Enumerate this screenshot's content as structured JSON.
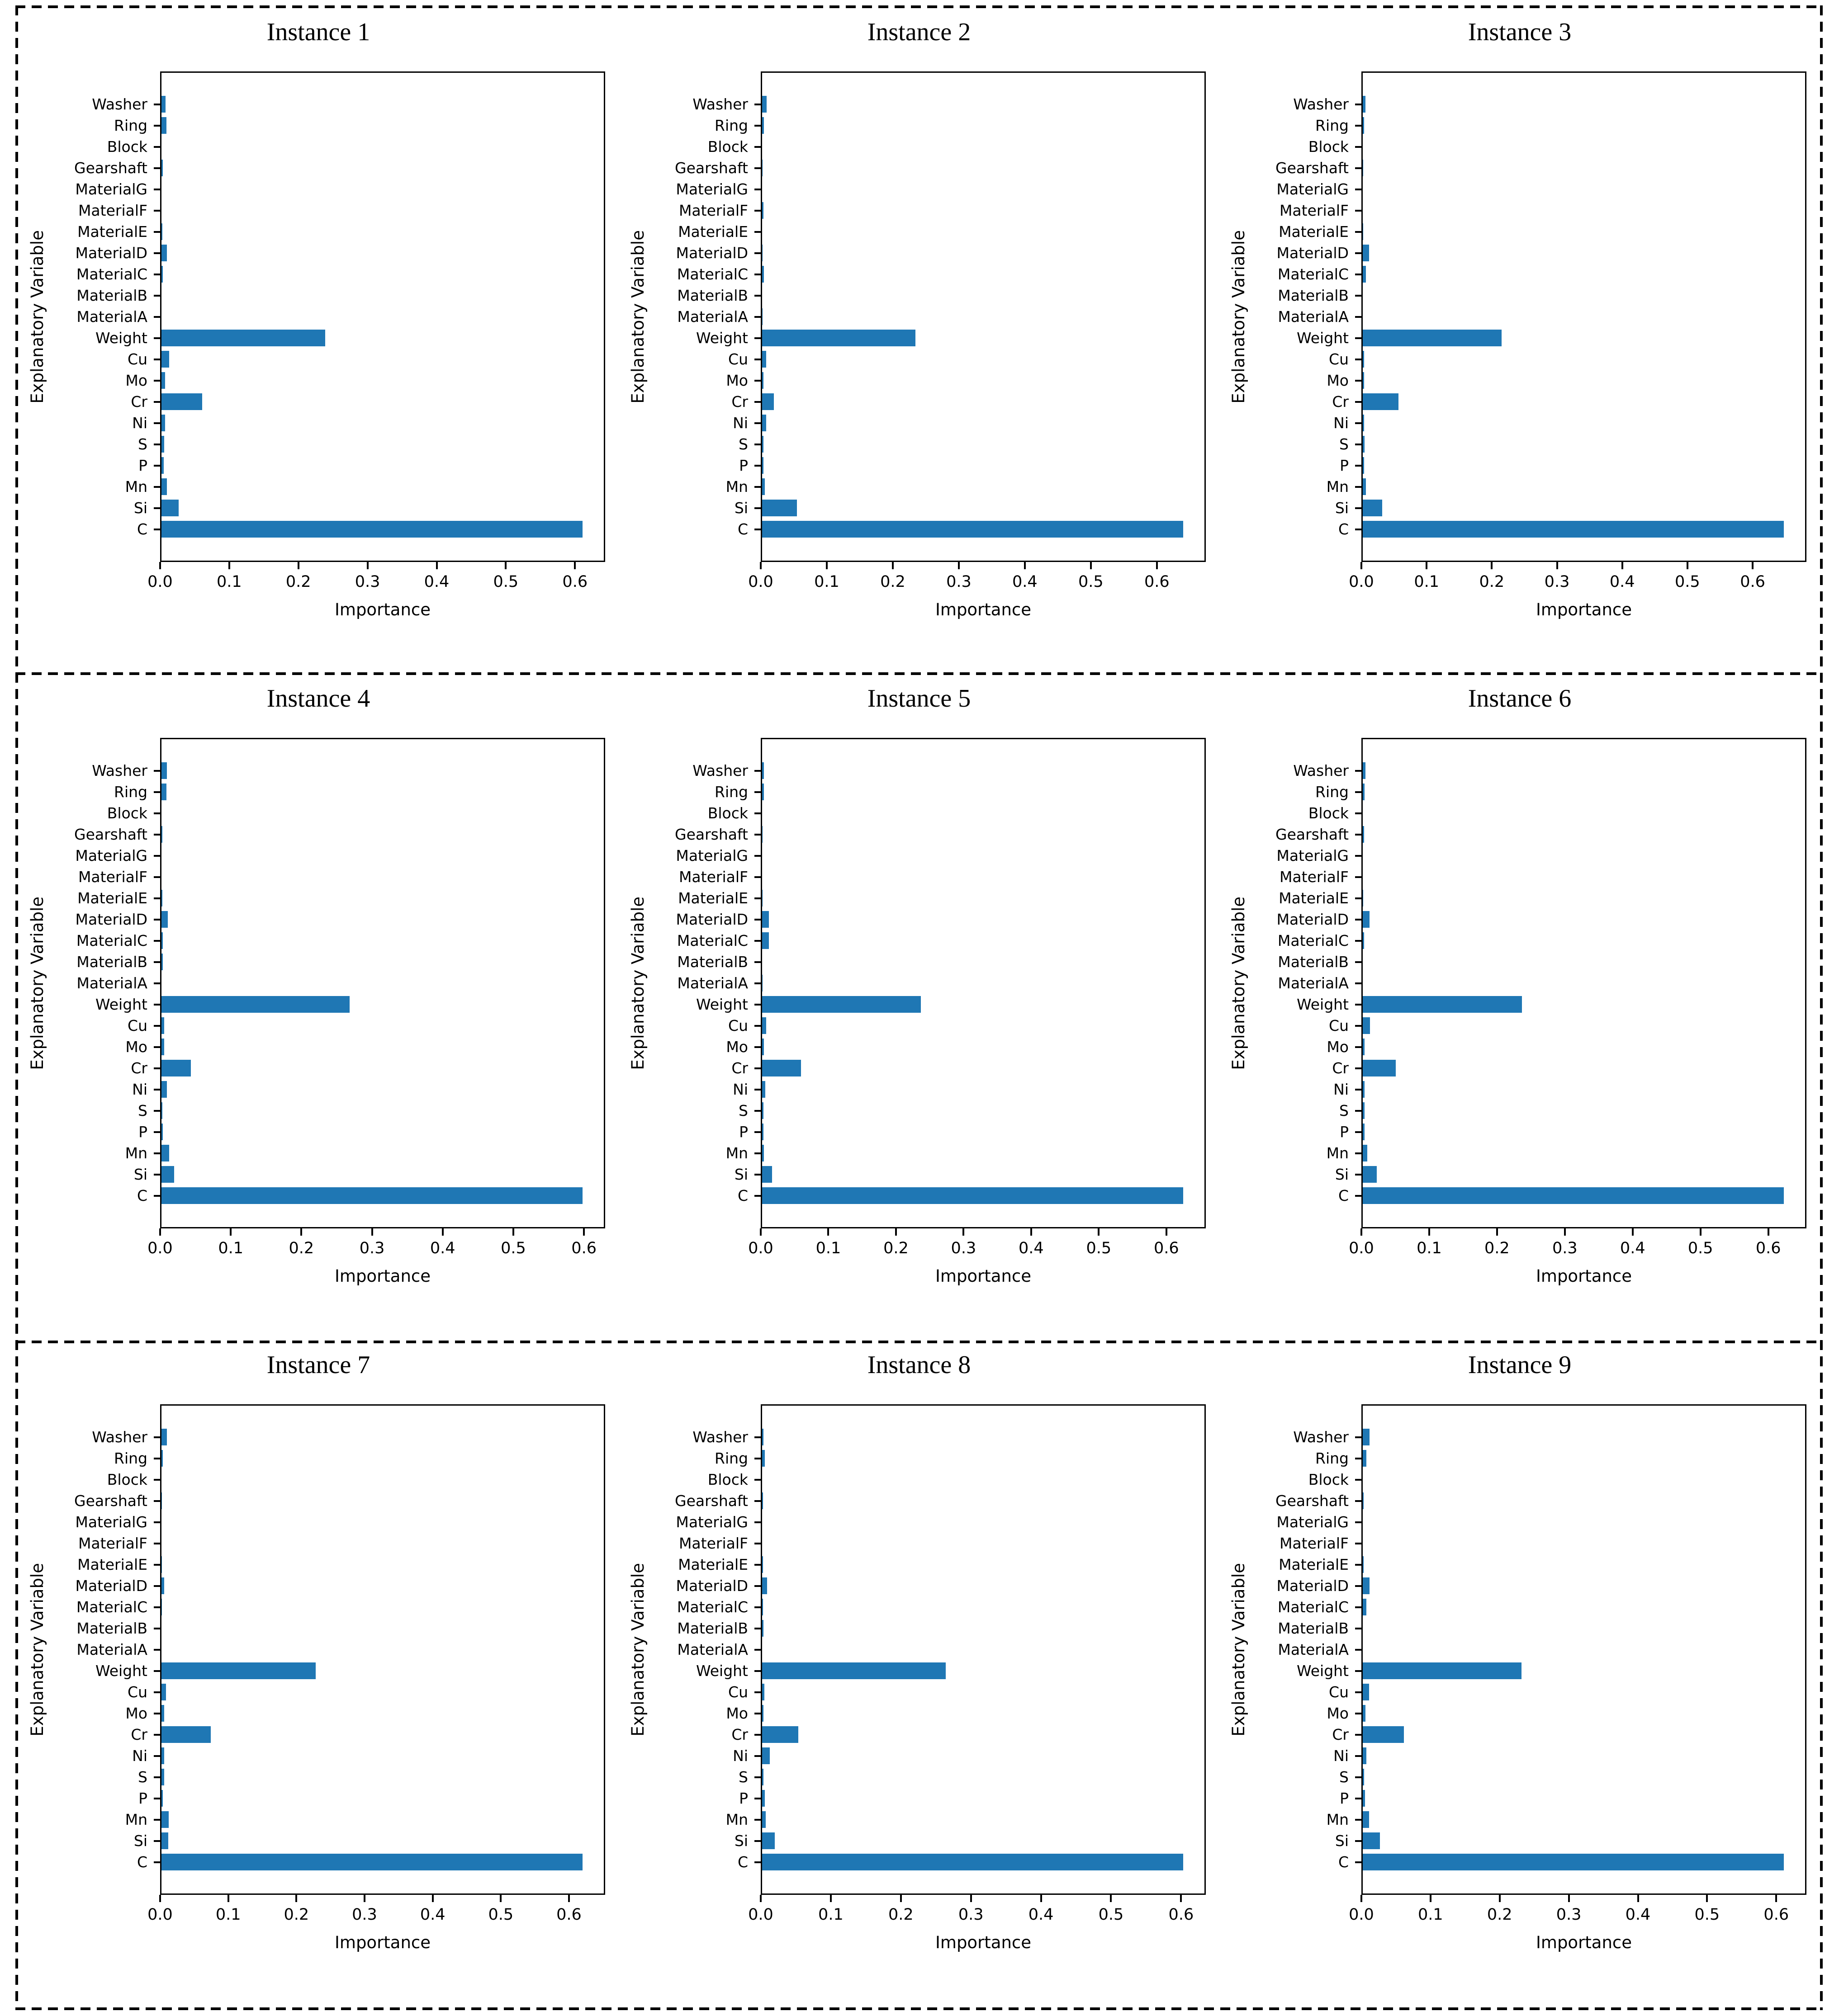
{
  "figure": {
    "layout": {
      "rows": 3,
      "cols": 3
    },
    "bar_color": "#1f77b4",
    "border_style": "black dashed frame with horizontal row dividers",
    "shared_ylabel": "Explanatory Variable",
    "shared_xlabel": "Importance",
    "subplot_titles": [
      "Instance 1",
      "Instance 2",
      "Instance 3",
      "Instance 4",
      "Instance 5",
      "Instance 6",
      "Instance 7",
      "Instance 8",
      "Instance 9"
    ]
  },
  "chart_data": [
    {
      "type": "bar",
      "orientation": "horizontal",
      "title": "Instance 1",
      "xlabel": "Importance",
      "ylabel": "Explanatory Variable",
      "bar_color": "#1f77b4",
      "grid": false,
      "legend": false,
      "xticks": [
        0.0,
        0.1,
        0.2,
        0.3,
        0.4,
        0.5,
        0.6
      ],
      "categories_top_to_bottom": [
        "Washer",
        "Ring",
        "Block",
        "Gearshaft",
        "MaterialG",
        "MaterialF",
        "MaterialE",
        "MaterialD",
        "MaterialC",
        "MaterialB",
        "MaterialA",
        "Weight",
        "Cu",
        "Mo",
        "Cr",
        "Ni",
        "S",
        "P",
        "Mn",
        "Si",
        "C"
      ],
      "values": [
        0.006,
        0.007,
        0.0,
        0.002,
        0.0,
        0.0,
        0.001,
        0.008,
        0.002,
        0.0,
        0.0,
        0.238,
        0.011,
        0.005,
        0.059,
        0.005,
        0.004,
        0.003,
        0.008,
        0.025,
        0.613
      ]
    },
    {
      "type": "bar",
      "orientation": "horizontal",
      "title": "Instance 2",
      "xlabel": "Importance",
      "ylabel": "Explanatory Variable",
      "bar_color": "#1f77b4",
      "grid": false,
      "legend": false,
      "xticks": [
        0.0,
        0.1,
        0.2,
        0.3,
        0.4,
        0.5,
        0.6
      ],
      "categories_top_to_bottom": [
        "Washer",
        "Ring",
        "Block",
        "Gearshaft",
        "MaterialG",
        "MaterialF",
        "MaterialE",
        "MaterialD",
        "MaterialC",
        "MaterialB",
        "MaterialA",
        "Weight",
        "Cu",
        "Mo",
        "Cr",
        "Ni",
        "S",
        "P",
        "Mn",
        "Si",
        "C"
      ],
      "values": [
        0.007,
        0.003,
        0.0,
        0.001,
        0.0,
        0.002,
        0.0,
        0.001,
        0.003,
        0.0,
        0.001,
        0.234,
        0.006,
        0.002,
        0.018,
        0.006,
        0.002,
        0.002,
        0.004,
        0.053,
        0.642
      ]
    },
    {
      "type": "bar",
      "orientation": "horizontal",
      "title": "Instance 3",
      "xlabel": "Importance",
      "ylabel": "Explanatory Variable",
      "bar_color": "#1f77b4",
      "grid": false,
      "legend": false,
      "xticks": [
        0.0,
        0.1,
        0.2,
        0.3,
        0.4,
        0.5,
        0.6
      ],
      "categories_top_to_bottom": [
        "Washer",
        "Ring",
        "Block",
        "Gearshaft",
        "MaterialG",
        "MaterialF",
        "MaterialE",
        "MaterialD",
        "MaterialC",
        "MaterialB",
        "MaterialA",
        "Weight",
        "Cu",
        "Mo",
        "Cr",
        "Ni",
        "S",
        "P",
        "Mn",
        "Si",
        "C"
      ],
      "values": [
        0.004,
        0.002,
        0.0,
        0.001,
        0.0,
        0.0,
        0.001,
        0.01,
        0.005,
        0.0,
        0.0,
        0.214,
        0.002,
        0.002,
        0.055,
        0.002,
        0.003,
        0.002,
        0.005,
        0.03,
        0.65
      ]
    },
    {
      "type": "bar",
      "orientation": "horizontal",
      "title": "Instance 4",
      "xlabel": "Importance",
      "ylabel": "Explanatory Variable",
      "bar_color": "#1f77b4",
      "grid": false,
      "legend": false,
      "xticks": [
        0.0,
        0.1,
        0.2,
        0.3,
        0.4,
        0.5,
        0.6
      ],
      "categories_top_to_bottom": [
        "Washer",
        "Ring",
        "Block",
        "Gearshaft",
        "MaterialG",
        "MaterialF",
        "MaterialE",
        "MaterialD",
        "MaterialC",
        "MaterialB",
        "MaterialA",
        "Weight",
        "Cu",
        "Mo",
        "Cr",
        "Ni",
        "S",
        "P",
        "Mn",
        "Si",
        "C"
      ],
      "values": [
        0.008,
        0.007,
        0.0,
        0.001,
        0.0,
        0.0,
        0.001,
        0.009,
        0.002,
        0.002,
        0.0,
        0.268,
        0.004,
        0.004,
        0.042,
        0.008,
        0.001,
        0.002,
        0.011,
        0.018,
        0.6
      ]
    },
    {
      "type": "bar",
      "orientation": "horizontal",
      "title": "Instance 5",
      "xlabel": "Importance",
      "ylabel": "Explanatory Variable",
      "bar_color": "#1f77b4",
      "grid": false,
      "legend": false,
      "xticks": [
        0.0,
        0.1,
        0.2,
        0.3,
        0.4,
        0.5,
        0.6
      ],
      "categories_top_to_bottom": [
        "Washer",
        "Ring",
        "Block",
        "Gearshaft",
        "MaterialG",
        "MaterialF",
        "MaterialE",
        "MaterialD",
        "MaterialC",
        "MaterialB",
        "MaterialA",
        "Weight",
        "Cu",
        "Mo",
        "Cr",
        "Ni",
        "S",
        "P",
        "Mn",
        "Si",
        "C"
      ],
      "values": [
        0.003,
        0.003,
        0.0,
        0.001,
        0.0,
        0.0,
        0.001,
        0.01,
        0.01,
        0.0,
        0.001,
        0.236,
        0.006,
        0.003,
        0.058,
        0.005,
        0.002,
        0.002,
        0.003,
        0.015,
        0.627
      ]
    },
    {
      "type": "bar",
      "orientation": "horizontal",
      "title": "Instance 6",
      "xlabel": "Importance",
      "ylabel": "Explanatory Variable",
      "bar_color": "#1f77b4",
      "grid": false,
      "legend": false,
      "xticks": [
        0.0,
        0.1,
        0.2,
        0.3,
        0.4,
        0.5,
        0.6
      ],
      "categories_top_to_bottom": [
        "Washer",
        "Ring",
        "Block",
        "Gearshaft",
        "MaterialG",
        "MaterialF",
        "MaterialE",
        "MaterialD",
        "MaterialC",
        "MaterialB",
        "MaterialA",
        "Weight",
        "Cu",
        "Mo",
        "Cr",
        "Ni",
        "S",
        "P",
        "Mn",
        "Si",
        "C"
      ],
      "values": [
        0.004,
        0.003,
        0.0,
        0.002,
        0.0,
        0.0,
        0.001,
        0.01,
        0.002,
        0.0,
        0.0,
        0.236,
        0.011,
        0.003,
        0.049,
        0.003,
        0.003,
        0.003,
        0.007,
        0.021,
        0.625
      ]
    },
    {
      "type": "bar",
      "orientation": "horizontal",
      "title": "Instance 7",
      "xlabel": "Importance",
      "ylabel": "Explanatory Variable",
      "bar_color": "#1f77b4",
      "grid": false,
      "legend": false,
      "xticks": [
        0.0,
        0.1,
        0.2,
        0.3,
        0.4,
        0.5,
        0.6
      ],
      "categories_top_to_bottom": [
        "Washer",
        "Ring",
        "Block",
        "Gearshaft",
        "MaterialG",
        "MaterialF",
        "MaterialE",
        "MaterialD",
        "MaterialC",
        "MaterialB",
        "MaterialA",
        "Weight",
        "Cu",
        "Mo",
        "Cr",
        "Ni",
        "S",
        "P",
        "Mn",
        "Si",
        "C"
      ],
      "values": [
        0.008,
        0.002,
        0.0,
        0.001,
        0.0,
        0.0,
        0.001,
        0.004,
        0.001,
        0.0,
        0.0,
        0.228,
        0.007,
        0.004,
        0.073,
        0.004,
        0.004,
        0.002,
        0.011,
        0.01,
        0.622
      ]
    },
    {
      "type": "bar",
      "orientation": "horizontal",
      "title": "Instance 8",
      "xlabel": "Importance",
      "ylabel": "Explanatory Variable",
      "bar_color": "#1f77b4",
      "grid": false,
      "legend": false,
      "xticks": [
        0.0,
        0.1,
        0.2,
        0.3,
        0.4,
        0.5,
        0.6
      ],
      "categories_top_to_bottom": [
        "Washer",
        "Ring",
        "Block",
        "Gearshaft",
        "MaterialG",
        "MaterialF",
        "MaterialE",
        "MaterialD",
        "MaterialC",
        "MaterialB",
        "MaterialA",
        "Weight",
        "Cu",
        "Mo",
        "Cr",
        "Ni",
        "S",
        "P",
        "Mn",
        "Si",
        "C"
      ],
      "values": [
        0.002,
        0.004,
        0.0,
        0.001,
        0.0,
        0.0,
        0.001,
        0.007,
        0.001,
        0.002,
        0.0,
        0.264,
        0.003,
        0.002,
        0.052,
        0.011,
        0.002,
        0.004,
        0.005,
        0.018,
        0.605
      ]
    },
    {
      "type": "bar",
      "orientation": "horizontal",
      "title": "Instance 9",
      "xlabel": "Importance",
      "ylabel": "Explanatory Variable",
      "bar_color": "#1f77b4",
      "grid": false,
      "legend": false,
      "xticks": [
        0.0,
        0.1,
        0.2,
        0.3,
        0.4,
        0.5,
        0.6
      ],
      "categories_top_to_bottom": [
        "Washer",
        "Ring",
        "Block",
        "Gearshaft",
        "MaterialG",
        "MaterialF",
        "MaterialE",
        "MaterialD",
        "MaterialC",
        "MaterialB",
        "MaterialA",
        "Weight",
        "Cu",
        "Mo",
        "Cr",
        "Ni",
        "S",
        "P",
        "Mn",
        "Si",
        "C"
      ],
      "values": [
        0.01,
        0.005,
        0.0,
        0.001,
        0.0,
        0.0,
        0.001,
        0.01,
        0.005,
        0.0,
        0.0,
        0.231,
        0.009,
        0.004,
        0.06,
        0.005,
        0.002,
        0.003,
        0.009,
        0.025,
        0.613
      ]
    }
  ]
}
